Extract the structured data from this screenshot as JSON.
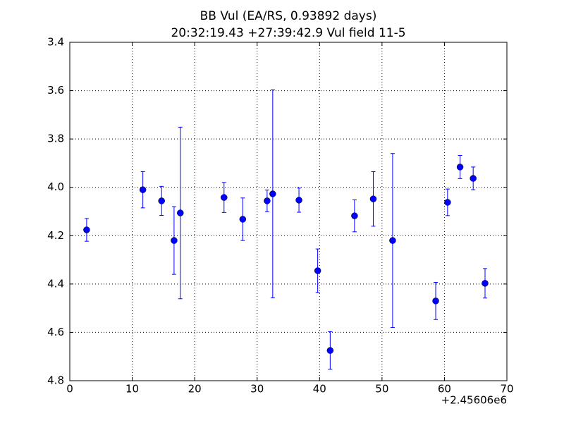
{
  "chart_data": {
    "type": "errorbar",
    "title": "BB Vul (EA/RS, 0.93892 days)",
    "subtitle": "20:32:19.43 +27:39:42.9 Vul field 11-5",
    "x": [
      2.7,
      11.7,
      14.7,
      16.7,
      17.7,
      24.7,
      27.7,
      31.6,
      32.5,
      36.7,
      39.7,
      41.7,
      45.6,
      48.6,
      51.7,
      58.6,
      60.5,
      62.5,
      64.6,
      66.5
    ],
    "values": [
      4.176,
      4.01,
      4.056,
      4.22,
      4.106,
      4.042,
      4.132,
      4.056,
      4.027,
      4.053,
      4.345,
      4.675,
      4.118,
      4.048,
      4.22,
      4.47,
      4.062,
      3.916,
      3.963,
      4.397
    ],
    "errors": [
      0.047,
      0.075,
      0.06,
      0.14,
      0.355,
      0.062,
      0.088,
      0.045,
      0.43,
      0.05,
      0.09,
      0.078,
      0.066,
      0.113,
      0.36,
      0.077,
      0.055,
      0.048,
      0.047,
      0.061
    ],
    "color": "#0000ff",
    "xlim": [
      0,
      70
    ],
    "xticks": [
      0,
      10,
      20,
      30,
      40,
      50,
      60,
      70
    ],
    "x_offset_label": "+2.45606e6",
    "ylim": [
      3.4,
      4.8
    ],
    "y_inverted": true,
    "yticks": [
      3.4,
      3.6,
      3.8,
      {
        "value": 4,
        "label": "4.0"
      },
      4.2,
      4.4,
      4.6,
      4.8
    ],
    "grid": true
  }
}
